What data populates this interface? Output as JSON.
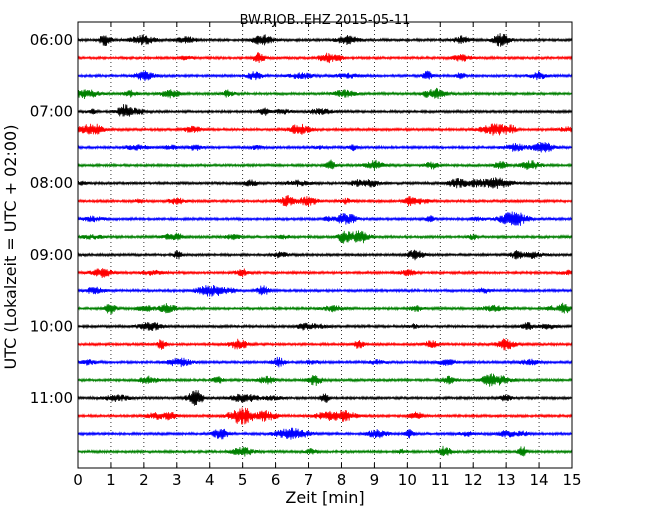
{
  "chart_data": {
    "type": "line",
    "title": "BW.RJOB..EHZ 2015-05-11",
    "xlabel": "Zeit  [min]",
    "ylabel": "UTC (Lokalzeit = UTC + 02:00)",
    "xlim": [
      0,
      15
    ],
    "x_ticks": [
      "0",
      "1",
      "2",
      "3",
      "4",
      "5",
      "6",
      "7",
      "8",
      "9",
      "10",
      "11",
      "12",
      "13",
      "14",
      "15"
    ],
    "y_ticks": [
      "06:00",
      "07:00",
      "08:00",
      "09:00",
      "10:00",
      "11:00"
    ],
    "grid": "vertical dotted lines at each minute",
    "traces_per_hour": 4,
    "trace_count": 24,
    "start_time": "06:00",
    "trace_length_min": 15,
    "colors": [
      "#000000",
      "#ff0000",
      "#0000ff",
      "#008000"
    ],
    "series": [
      {
        "time": "06:00",
        "color": "#000000"
      },
      {
        "time": "06:15",
        "color": "#ff0000"
      },
      {
        "time": "06:30",
        "color": "#0000ff"
      },
      {
        "time": "06:45",
        "color": "#008000"
      },
      {
        "time": "07:00",
        "color": "#000000"
      },
      {
        "time": "07:15",
        "color": "#ff0000"
      },
      {
        "time": "07:30",
        "color": "#0000ff"
      },
      {
        "time": "07:45",
        "color": "#008000"
      },
      {
        "time": "08:00",
        "color": "#000000"
      },
      {
        "time": "08:15",
        "color": "#ff0000"
      },
      {
        "time": "08:30",
        "color": "#0000ff"
      },
      {
        "time": "08:45",
        "color": "#008000"
      },
      {
        "time": "09:00",
        "color": "#000000"
      },
      {
        "time": "09:15",
        "color": "#ff0000"
      },
      {
        "time": "09:30",
        "color": "#0000ff"
      },
      {
        "time": "09:45",
        "color": "#008000"
      },
      {
        "time": "10:00",
        "color": "#000000"
      },
      {
        "time": "10:15",
        "color": "#ff0000"
      },
      {
        "time": "10:30",
        "color": "#0000ff"
      },
      {
        "time": "10:45",
        "color": "#008000"
      },
      {
        "time": "11:00",
        "color": "#000000"
      },
      {
        "time": "11:15",
        "color": "#ff0000"
      },
      {
        "time": "11:30",
        "color": "#0000ff"
      },
      {
        "time": "11:45",
        "color": "#008000"
      }
    ]
  }
}
